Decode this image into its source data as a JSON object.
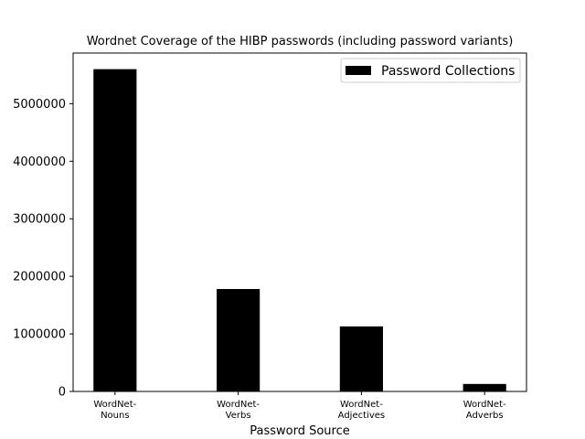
{
  "chart_data": {
    "type": "bar",
    "title": "Wordnet Coverage of the HIBP passwords (including password variants)",
    "xlabel": "Password Source",
    "ylabel": "",
    "categories": [
      [
        "WordNet-",
        "Nouns"
      ],
      [
        "WordNet-",
        "Verbs"
      ],
      [
        "WordNet-",
        "Adjectives"
      ],
      [
        "WordNet-",
        "Adverbs"
      ]
    ],
    "series": [
      {
        "name": "Password Collections",
        "color": "#000000",
        "values": [
          5600000,
          1780000,
          1130000,
          130000
        ]
      }
    ],
    "ylim": [
      0,
      5880000
    ],
    "yticks": [
      0,
      1000000,
      2000000,
      3000000,
      4000000,
      5000000
    ],
    "ytick_labels": [
      "0",
      "1000000",
      "2000000",
      "3000000",
      "4000000",
      "5000000"
    ],
    "grid": false,
    "legend_position": "upper right"
  }
}
